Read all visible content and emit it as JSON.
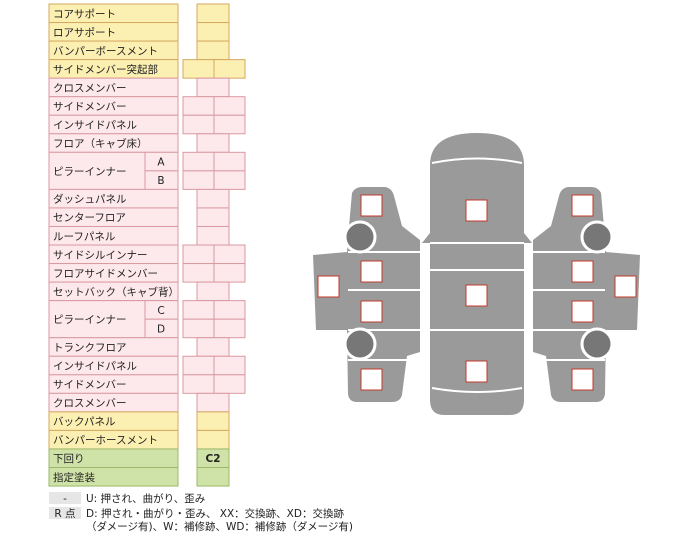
{
  "table": {
    "rows": [
      {
        "label": "コアサポート"
      },
      {
        "label": "ロアサポート"
      },
      {
        "label": "バンパーボースメント"
      },
      {
        "label": "サイドメンバー突起部"
      },
      {
        "label": "クロスメンバー"
      },
      {
        "label": "サイドメンバー"
      },
      {
        "label": "インサイドパネル"
      },
      {
        "label": "フロア（キャブ床）"
      },
      {
        "label": "ピラーインナー",
        "subs": [
          "A",
          "B"
        ]
      },
      {
        "label": "ダッシュパネル"
      },
      {
        "label": "センターフロア"
      },
      {
        "label": "ルーフパネル"
      },
      {
        "label": "サイドシルインナー"
      },
      {
        "label": "フロアサイドメンバー"
      },
      {
        "label": "セットバック（キャブ背）"
      },
      {
        "label": "ピラーインナー",
        "subs": [
          "C",
          "D"
        ]
      },
      {
        "label": "トランクフロア"
      },
      {
        "label": "インサイドパネル"
      },
      {
        "label": "サイドメンバー"
      },
      {
        "label": "クロスメンバー"
      },
      {
        "label": "バックパネル"
      },
      {
        "label": "バンパーホースメント"
      },
      {
        "label": "下回り",
        "value": "C2"
      },
      {
        "label": "指定塗装"
      }
    ]
  },
  "legend": [
    {
      "key": "-",
      "lines": [
        "U: 押され、曲がり、歪み"
      ]
    },
    {
      "key": "R 点",
      "lines": [
        "D: 押され・曲がり・歪み、 XX：交換跡、XD：交換跡",
        "（ダメージ有)、W：補修跡、WD：補修跡（ダメージ有)"
      ]
    }
  ]
}
